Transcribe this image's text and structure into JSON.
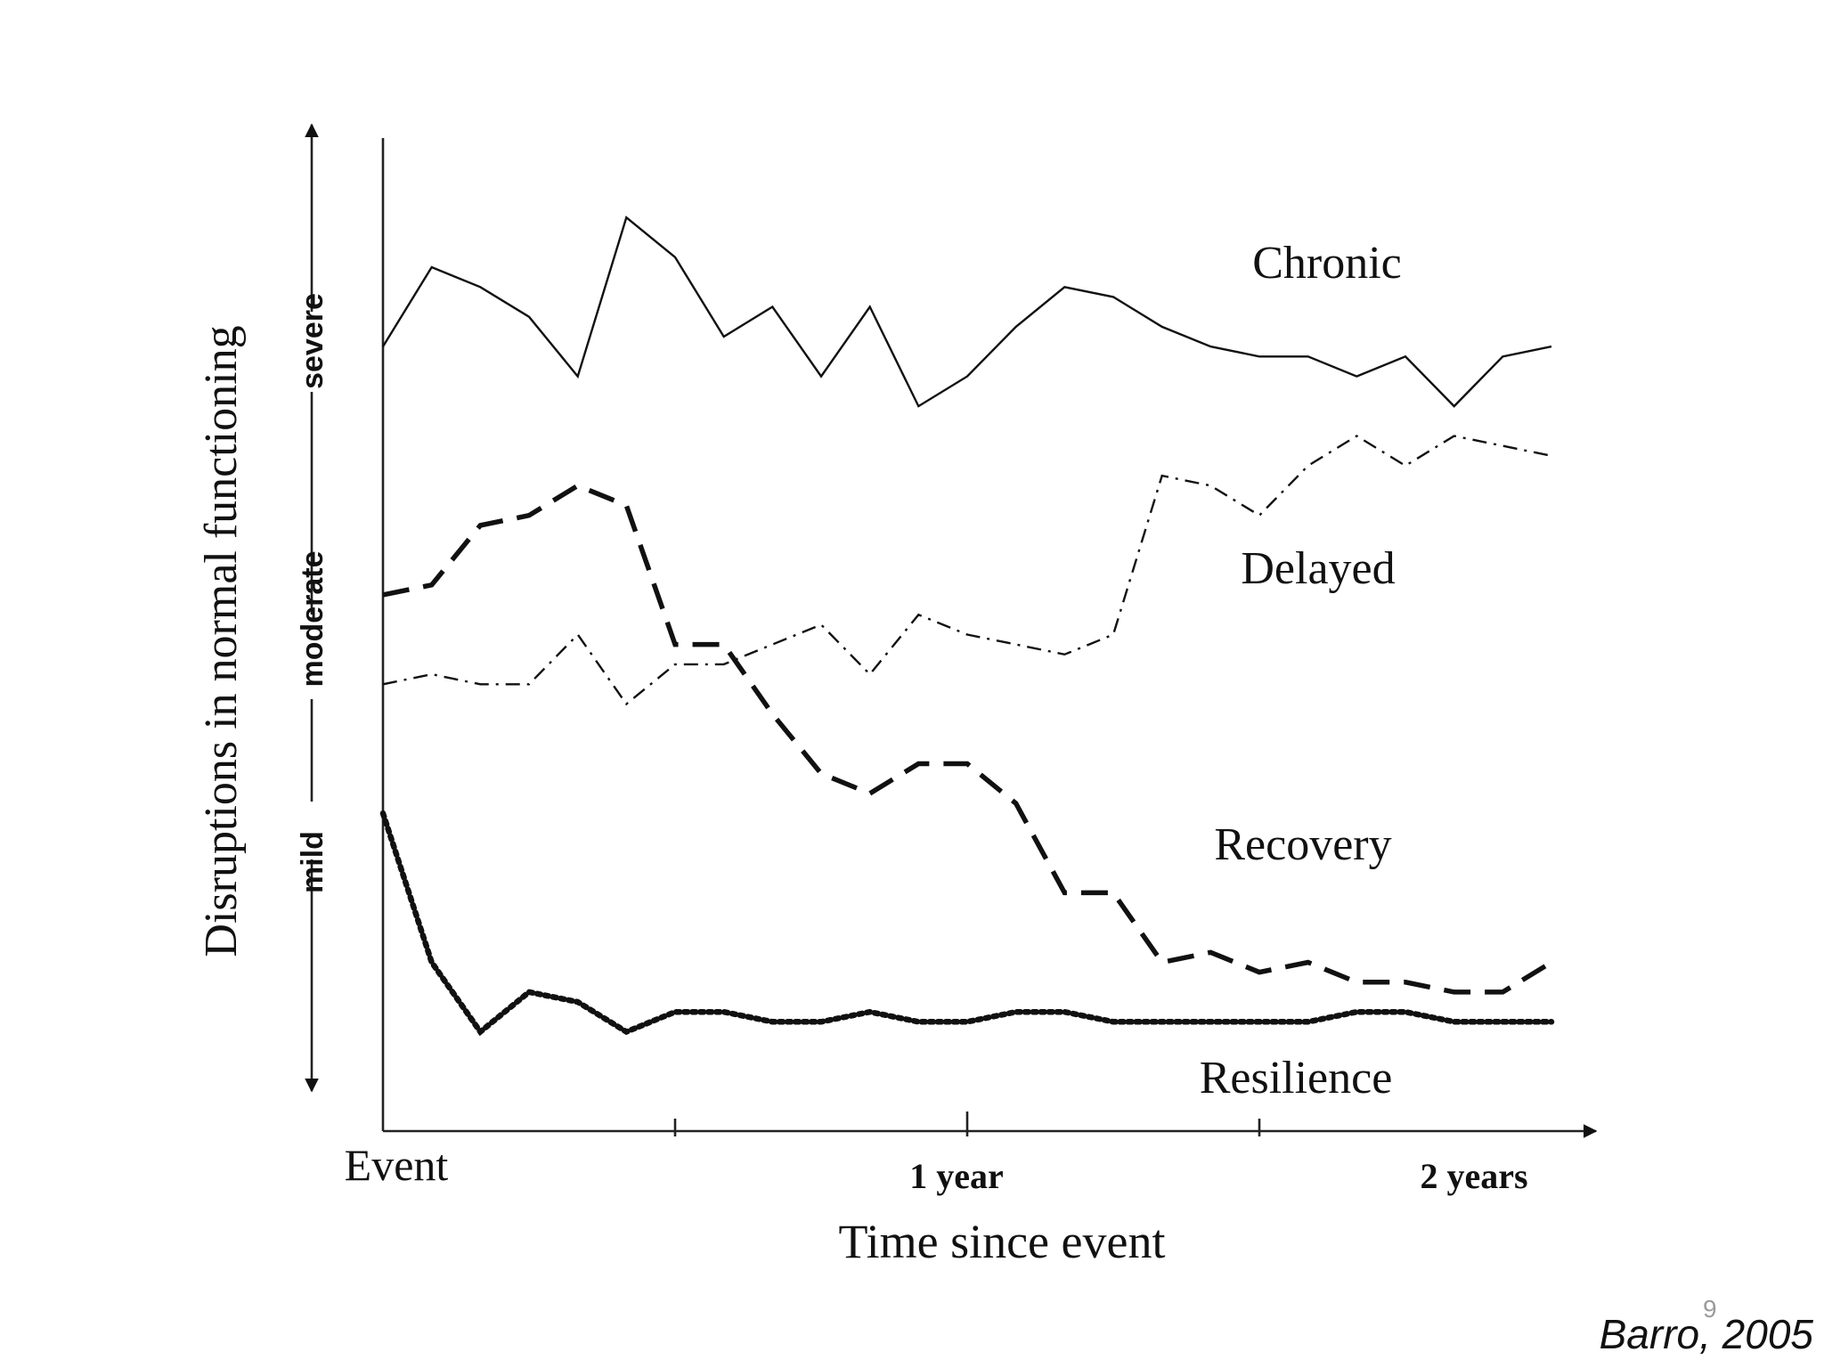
{
  "chart_data": {
    "type": "line",
    "x_axis": {
      "label": "Time since event",
      "ticks": [
        "Event",
        "1 year",
        "2 years"
      ],
      "tick_values": [
        0,
        12,
        24
      ],
      "unit": "months",
      "xlim": [
        0,
        24
      ]
    },
    "y_axis": {
      "label": "Disruptions in normal functioning",
      "scale_labels": [
        "mild",
        "moderate",
        "severe"
      ],
      "scale_values": [
        2,
        5,
        9
      ],
      "ylim": [
        0,
        10
      ]
    },
    "x": [
      0,
      1,
      2,
      3,
      4,
      5,
      6,
      7,
      8,
      9,
      10,
      11,
      12,
      13,
      14,
      15,
      16,
      17,
      18,
      19,
      20,
      21,
      22,
      23,
      24
    ],
    "series": [
      {
        "name": "Chronic",
        "line_style": "solid",
        "values": [
          7.9,
          8.7,
          8.5,
          8.2,
          7.6,
          9.2,
          8.8,
          8.0,
          8.3,
          7.6,
          8.3,
          7.3,
          7.6,
          8.1,
          8.5,
          8.4,
          8.1,
          7.9,
          7.8,
          7.8,
          7.6,
          7.8,
          7.3,
          7.8,
          7.9
        ]
      },
      {
        "name": "Delayed",
        "line_style": "dash-dot",
        "values": [
          4.5,
          4.6,
          4.5,
          4.5,
          5.0,
          4.3,
          4.7,
          4.7,
          4.9,
          5.1,
          4.6,
          5.2,
          5.0,
          4.9,
          4.8,
          5.0,
          6.6,
          6.5,
          6.2,
          6.7,
          7.0,
          6.7,
          7.0,
          6.9,
          6.8
        ]
      },
      {
        "name": "Recovery",
        "line_style": "dashed",
        "values": [
          5.4,
          5.5,
          6.1,
          6.2,
          6.5,
          6.3,
          4.9,
          4.9,
          4.2,
          3.6,
          3.4,
          3.7,
          3.7,
          3.3,
          2.4,
          2.4,
          1.7,
          1.8,
          1.6,
          1.7,
          1.5,
          1.5,
          1.4,
          1.4,
          1.7
        ]
      },
      {
        "name": "Resilience",
        "line_style": "dotted",
        "values": [
          3.2,
          1.7,
          1.0,
          1.4,
          1.3,
          1.0,
          1.2,
          1.2,
          1.1,
          1.1,
          1.2,
          1.1,
          1.1,
          1.2,
          1.2,
          1.1,
          1.1,
          1.1,
          1.1,
          1.1,
          1.2,
          1.2,
          1.1,
          1.1,
          1.1
        ]
      }
    ],
    "legend_placement": "inline labels on the right of each line",
    "grid": false
  },
  "citation": "Barro, 2005",
  "page_number": "9"
}
